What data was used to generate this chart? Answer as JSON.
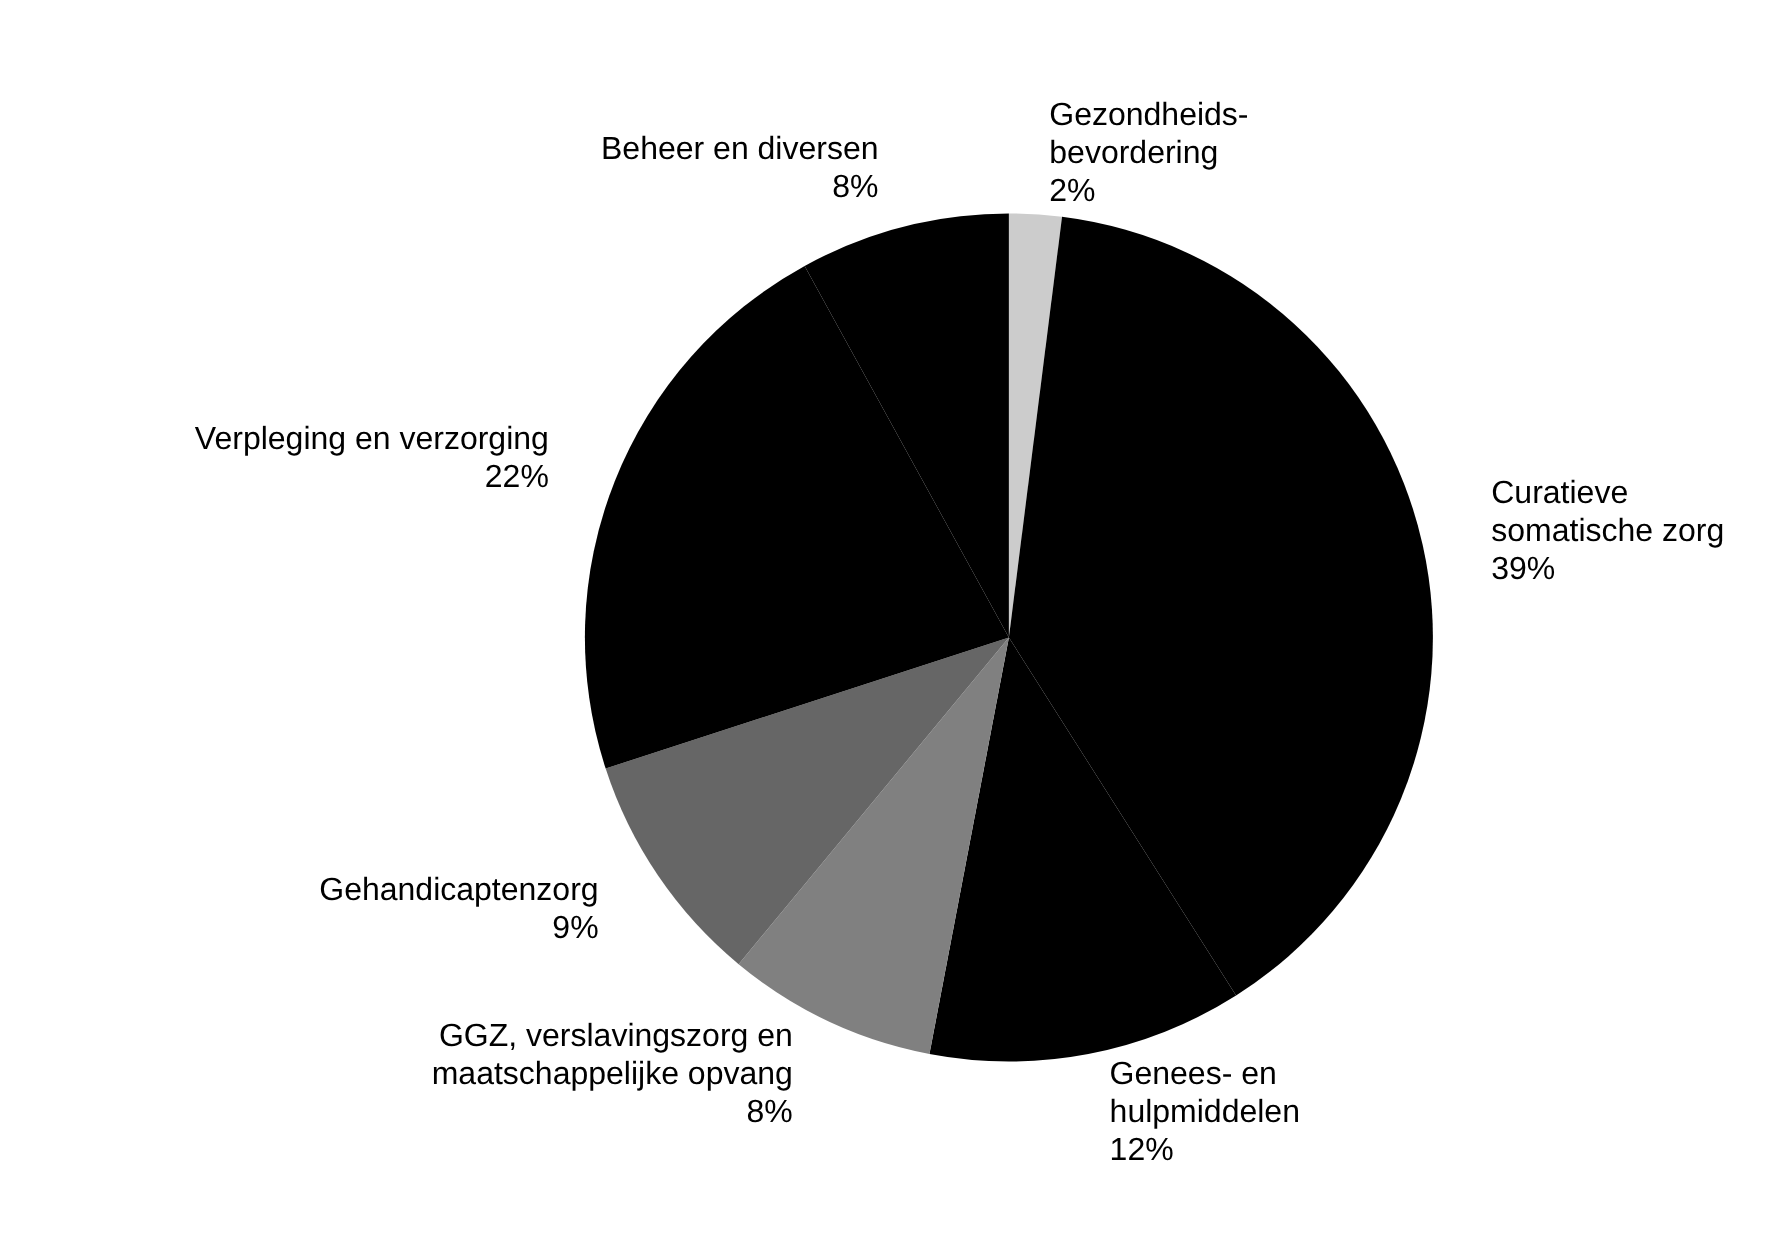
{
  "chart_data": {
    "type": "pie",
    "categories": [
      "Gezondheids-\nbevordering",
      "Curatieve\nsomatische zorg",
      "Genees- en\nhulpmiddelen",
      "GGZ, verslavingszorg en\nmaatschappelijke opvang",
      "Gehandicaptenzorg",
      "Verpleging en verzorging",
      "Beheer en diversen"
    ],
    "values": [
      2,
      39,
      12,
      8,
      9,
      22,
      8
    ],
    "value_labels": [
      "2%",
      "39%",
      "12%",
      "8%",
      "9%",
      "22%",
      "8%"
    ],
    "colors": [
      "#cccccc",
      "#000000",
      "#000000",
      "#808080",
      "#666666",
      "#000000",
      "#000000"
    ],
    "legend": false
  }
}
